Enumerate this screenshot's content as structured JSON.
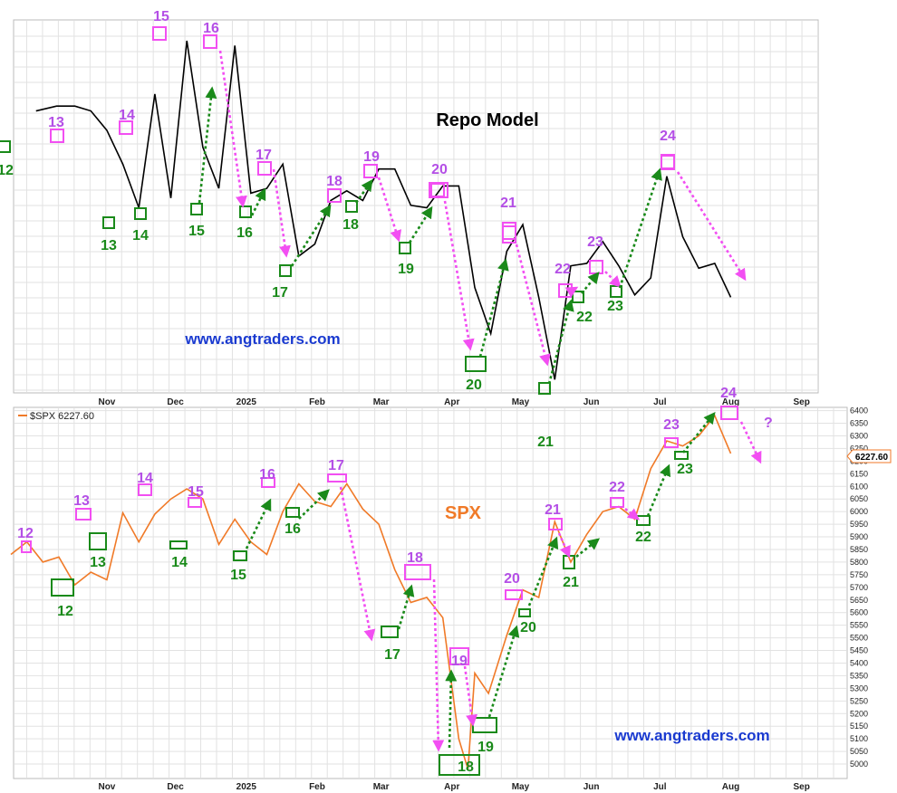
{
  "colors": {
    "repo_line": "#000000",
    "spx_line": "#f07a28",
    "pink": "#f24ff2",
    "pink_label": "#b44fe6",
    "green": "#1a8a1a",
    "url": "#1a3ad0",
    "grid": "#e2e2e2"
  },
  "chart_data": [
    {
      "type": "line",
      "title": "Repo Model",
      "watermark": "www.angtraders.com",
      "x_ticks": [
        "Nov",
        "Dec",
        "2025",
        "Feb",
        "Mar",
        "Apr",
        "May",
        "Jun",
        "Jul",
        "Aug",
        "Sep"
      ],
      "y_scale": "relative (unlabeled)",
      "grid": true,
      "series": [
        {
          "x": [
            "2024-10-01",
            "2024-10-10",
            "2024-10-18",
            "2024-10-25",
            "2024-11-01",
            "2024-11-08",
            "2024-11-15",
            "2024-11-22",
            "2024-11-29",
            "2024-12-06",
            "2024-12-13",
            "2024-12-20",
            "2024-12-27",
            "2025-01-03",
            "2025-01-10",
            "2025-01-17",
            "2025-01-24",
            "2025-01-31",
            "2025-02-07",
            "2025-02-14",
            "2025-02-21",
            "2025-02-28",
            "2025-03-07",
            "2025-03-14",
            "2025-03-21",
            "2025-03-28",
            "2025-04-04",
            "2025-04-11",
            "2025-04-18",
            "2025-04-25",
            "2025-05-02",
            "2025-05-09",
            "2025-05-16",
            "2025-05-23",
            "2025-05-30",
            "2025-06-06",
            "2025-06-13",
            "2025-06-20",
            "2025-06-27",
            "2025-07-04",
            "2025-07-11",
            "2025-07-18",
            "2025-07-25",
            "2025-08-01"
          ],
          "values": [
            68,
            70,
            70,
            68,
            60,
            46,
            28,
            75,
            32,
            97,
            53,
            36,
            95,
            34,
            36,
            46,
            8,
            13,
            31,
            35,
            31,
            44,
            44,
            29,
            28,
            37,
            37,
            -5,
            -24,
            10,
            21,
            -9,
            -43,
            4,
            5,
            14,
            4,
            -8,
            -1,
            41,
            16,
            3,
            5,
            -9
          ]
        }
      ],
      "annotations": {
        "pink_boxes": [
          {
            "label": "13",
            "x": "2024-10-18",
            "y": 70
          },
          {
            "label": "14",
            "x": "2024-11-22",
            "y": 75
          },
          {
            "label": "15",
            "x": "2024-12-06",
            "y": 97
          },
          {
            "label": "16",
            "x": "2024-12-27",
            "y": 95
          },
          {
            "label": "17",
            "x": "2025-01-24",
            "y": 46
          },
          {
            "label": "18",
            "x": "2025-02-21",
            "y": 35
          },
          {
            "label": "19",
            "x": "2025-03-07",
            "y": 44
          },
          {
            "label": "20",
            "x": "2025-03-28",
            "y": 37
          },
          {
            "label": "21",
            "x": "2025-04-25",
            "y": 21
          },
          {
            "label": "22",
            "x": "2025-05-23",
            "y": 4
          },
          {
            "label": "23",
            "x": "2025-06-06",
            "y": 14
          },
          {
            "label": "24",
            "x": "2025-07-04",
            "y": 41
          }
        ],
        "green_boxes": [
          {
            "label": "12",
            "x": "2024-09-24",
            "y": 68
          },
          {
            "label": "13",
            "x": "2024-11-15",
            "y": 28
          },
          {
            "label": "14",
            "x": "2024-11-29",
            "y": 32
          },
          {
            "label": "15",
            "x": "2024-12-20",
            "y": 36
          },
          {
            "label": "16",
            "x": "2025-01-10",
            "y": 34
          },
          {
            "label": "17",
            "x": "2025-01-31",
            "y": 8
          },
          {
            "label": "18",
            "x": "2025-02-28",
            "y": 31
          },
          {
            "label": "19",
            "x": "2025-03-21",
            "y": 28
          },
          {
            "label": "20",
            "x": "2025-04-18",
            "y": -24
          },
          {
            "label": "22",
            "x": "2025-05-30",
            "y": 5
          },
          {
            "label": "23",
            "x": "2025-06-20",
            "y": 4
          }
        ],
        "bottom_labels": [
          "22",
          "23"
        ],
        "extra_bottom_label": "21"
      }
    },
    {
      "type": "line",
      "title": "SPX",
      "legend": "$SPX 6227.60",
      "last_value_label": "6227.60",
      "watermark": "www.angtraders.com",
      "question_mark": "?",
      "x_ticks": [
        "Nov",
        "Dec",
        "2025",
        "Feb",
        "Mar",
        "Apr",
        "May",
        "Jun",
        "Jul",
        "Aug",
        "Sep"
      ],
      "ylim": [
        4950,
        6420
      ],
      "y_ticks": [
        5000,
        5050,
        5100,
        5150,
        5200,
        5250,
        5300,
        5350,
        5400,
        5450,
        5500,
        5550,
        5600,
        5650,
        5700,
        5750,
        5800,
        5850,
        5900,
        5950,
        6000,
        6050,
        6100,
        6150,
        6200,
        6250,
        6300,
        6350,
        6400
      ],
      "grid": true,
      "series": [
        {
          "name": "$SPX",
          "x": [
            "2024-09-20",
            "2024-09-27",
            "2024-10-04",
            "2024-10-11",
            "2024-10-18",
            "2024-10-25",
            "2024-11-01",
            "2024-11-08",
            "2024-11-15",
            "2024-11-22",
            "2024-11-29",
            "2024-12-06",
            "2024-12-13",
            "2024-12-20",
            "2024-12-27",
            "2025-01-03",
            "2025-01-10",
            "2025-01-17",
            "2025-01-24",
            "2025-01-31",
            "2025-02-07",
            "2025-02-14",
            "2025-02-21",
            "2025-02-28",
            "2025-03-07",
            "2025-03-14",
            "2025-03-21",
            "2025-03-28",
            "2025-04-04",
            "2025-04-08",
            "2025-04-11",
            "2025-04-17",
            "2025-04-25",
            "2025-05-02",
            "2025-05-09",
            "2025-05-16",
            "2025-05-23",
            "2025-05-30",
            "2025-06-06",
            "2025-06-13",
            "2025-06-20",
            "2025-06-27",
            "2025-07-04",
            "2025-07-11",
            "2025-07-18",
            "2025-07-25",
            "2025-08-01"
          ],
          "values": [
            5830,
            5880,
            5800,
            5820,
            5710,
            5760,
            5730,
            5995,
            5880,
            5990,
            6050,
            6090,
            6050,
            5870,
            5970,
            5880,
            5830,
            6000,
            6110,
            6040,
            6020,
            6110,
            6010,
            5950,
            5770,
            5640,
            5660,
            5580,
            5100,
            4980,
            5360,
            5280,
            5510,
            5690,
            5660,
            5960,
            5800,
            5910,
            6000,
            6020,
            5970,
            6170,
            6280,
            6260,
            6300,
            6380,
            6230
          ]
        }
      ],
      "annotations": {
        "pink_boxes": [
          "12",
          "13",
          "14",
          "15",
          "16",
          "17",
          "18",
          "19",
          "20",
          "21",
          "22",
          "23",
          "24"
        ],
        "green_boxes": [
          "12",
          "13",
          "14",
          "15",
          "16",
          "17",
          "18",
          "19",
          "20",
          "21",
          "22",
          "23"
        ]
      }
    }
  ]
}
